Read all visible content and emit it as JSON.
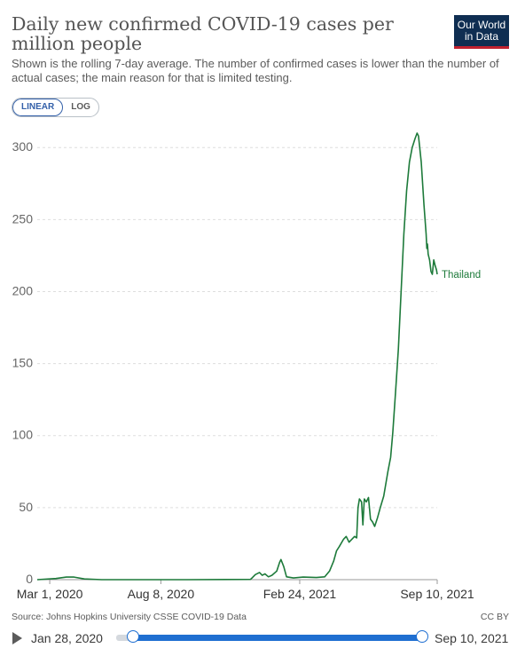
{
  "header": {
    "title": "Daily new confirmed COVID-19 cases per million people",
    "subtitle": "Shown is the rolling 7-day average. The number of confirmed cases is lower than the number of actual cases; the main reason for that is limited testing.",
    "logo_line1": "Our World",
    "logo_line2": "in Data"
  },
  "scale_toggle": {
    "linear": "LINEAR",
    "log": "LOG",
    "selected": "LINEAR"
  },
  "footer": {
    "source": "Source: Johns Hopkins University CSSE COVID-19 Data",
    "license": "CC BY"
  },
  "timeline": {
    "start": "Jan 28, 2020",
    "end": "Sep 10, 2021"
  },
  "colors": {
    "series": "#1d7a3a",
    "accent": "#1f6fd1"
  },
  "chart_data": {
    "type": "line",
    "ylim": [
      0,
      310
    ],
    "yticks": [
      0,
      50,
      100,
      150,
      200,
      250,
      300
    ],
    "xticks": [
      {
        "date": "2020-03-01",
        "label": "Mar 1, 2020"
      },
      {
        "date": "2020-08-08",
        "label": "Aug 8, 2020"
      },
      {
        "date": "2021-02-24",
        "label": "Feb 24, 2021"
      },
      {
        "date": "2021-09-10",
        "label": "Sep 10, 2021"
      }
    ],
    "xlim": [
      "2020-02-12",
      "2021-09-10"
    ],
    "grid": true,
    "series": [
      {
        "name": "Thailand",
        "points": [
          [
            "2020-02-12",
            0
          ],
          [
            "2020-03-10",
            0.8
          ],
          [
            "2020-03-25",
            1.8
          ],
          [
            "2020-04-05",
            1.8
          ],
          [
            "2020-04-20",
            0.5
          ],
          [
            "2020-05-15",
            0
          ],
          [
            "2020-09-15",
            0
          ],
          [
            "2020-12-15",
            0.2
          ],
          [
            "2020-12-18",
            1.5
          ],
          [
            "2020-12-22",
            3.5
          ],
          [
            "2020-12-28",
            5
          ],
          [
            "2021-01-01",
            3
          ],
          [
            "2021-01-05",
            4
          ],
          [
            "2021-01-10",
            2
          ],
          [
            "2021-01-15",
            3
          ],
          [
            "2021-01-22",
            6
          ],
          [
            "2021-01-26",
            12
          ],
          [
            "2021-01-28",
            14
          ],
          [
            "2021-02-01",
            9
          ],
          [
            "2021-02-05",
            2
          ],
          [
            "2021-02-15",
            1.2
          ],
          [
            "2021-03-01",
            1.8
          ],
          [
            "2021-03-20",
            1.5
          ],
          [
            "2021-04-01",
            2
          ],
          [
            "2021-04-08",
            6
          ],
          [
            "2021-04-14",
            13
          ],
          [
            "2021-04-18",
            20
          ],
          [
            "2021-04-22",
            23
          ],
          [
            "2021-04-28",
            28
          ],
          [
            "2021-05-02",
            30
          ],
          [
            "2021-05-06",
            26
          ],
          [
            "2021-05-10",
            28
          ],
          [
            "2021-05-14",
            30
          ],
          [
            "2021-05-17",
            29
          ],
          [
            "2021-05-19",
            50
          ],
          [
            "2021-05-21",
            56
          ],
          [
            "2021-05-24",
            54
          ],
          [
            "2021-05-26",
            38
          ],
          [
            "2021-05-28",
            56
          ],
          [
            "2021-05-31",
            54
          ],
          [
            "2021-06-03",
            57
          ],
          [
            "2021-06-06",
            42
          ],
          [
            "2021-06-09",
            40
          ],
          [
            "2021-06-12",
            37
          ],
          [
            "2021-06-16",
            43
          ],
          [
            "2021-06-20",
            50
          ],
          [
            "2021-06-25",
            58
          ],
          [
            "2021-07-01",
            75
          ],
          [
            "2021-07-05",
            85
          ],
          [
            "2021-07-08",
            102
          ],
          [
            "2021-07-12",
            130
          ],
          [
            "2021-07-16",
            160
          ],
          [
            "2021-07-20",
            200
          ],
          [
            "2021-07-24",
            240
          ],
          [
            "2021-07-28",
            270
          ],
          [
            "2021-08-01",
            290
          ],
          [
            "2021-08-05",
            300
          ],
          [
            "2021-08-09",
            306
          ],
          [
            "2021-08-12",
            310
          ],
          [
            "2021-08-14",
            308
          ],
          [
            "2021-08-18",
            290
          ],
          [
            "2021-08-22",
            260
          ],
          [
            "2021-08-25",
            240
          ],
          [
            "2021-08-26",
            230
          ],
          [
            "2021-08-27",
            233
          ],
          [
            "2021-08-28",
            226
          ],
          [
            "2021-08-30",
            222
          ],
          [
            "2021-09-01",
            214
          ],
          [
            "2021-09-03",
            212
          ],
          [
            "2021-09-05",
            222
          ],
          [
            "2021-09-07",
            218
          ],
          [
            "2021-09-09",
            215
          ],
          [
            "2021-09-10",
            212
          ]
        ]
      }
    ]
  }
}
